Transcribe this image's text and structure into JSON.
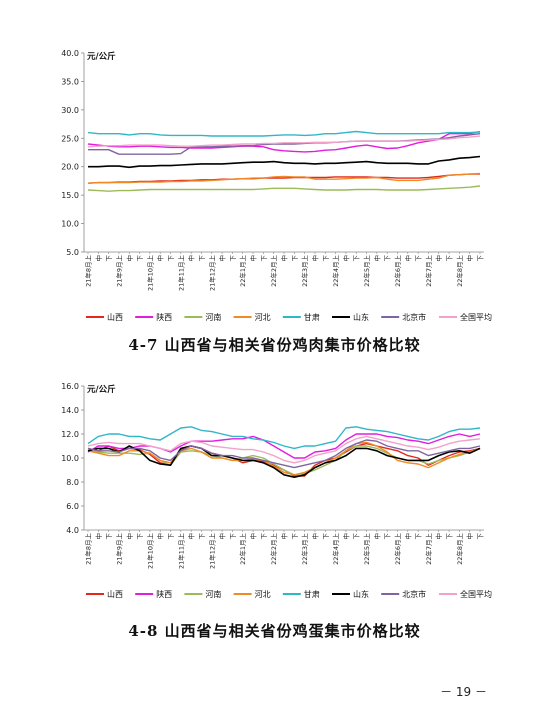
{
  "page": {
    "number": "－ 19 －"
  },
  "charts": [
    {
      "caption": "4-7 山西省与相关省份鸡肉集市价格比较",
      "chart_data": {
        "type": "line",
        "unit_label": "元/公斤",
        "ylim": [
          5.0,
          40.0
        ],
        "yticks": [
          "5.0",
          "10.0",
          "15.0",
          "20.0",
          "25.0",
          "30.0",
          "35.0",
          "40.0"
        ],
        "ytick_values": [
          5,
          10,
          15,
          20,
          25,
          30,
          35,
          40
        ],
        "grid": false,
        "legend_position": "bottom",
        "categories": [
          "21年8月上",
          "中",
          "下",
          "21年9月上",
          "中",
          "下",
          "21年10月上",
          "中",
          "下",
          "21年11月上",
          "中",
          "下",
          "21年12月上",
          "中",
          "下",
          "22年1月上",
          "中",
          "下",
          "22年2月上",
          "中",
          "下",
          "22年3月上",
          "中",
          "下",
          "22年4月上",
          "中",
          "下",
          "22年5月上",
          "中",
          "下",
          "22年6月上",
          "中",
          "下",
          "22年7月上",
          "中",
          "下",
          "22年8月上",
          "中",
          "下"
        ],
        "series": [
          {
            "name": "山西",
            "color": "#e0291e",
            "values": [
              17.1,
              17.2,
              17.2,
              17.3,
              17.3,
              17.4,
              17.4,
              17.5,
              17.5,
              17.6,
              17.6,
              17.7,
              17.7,
              17.8,
              17.8,
              17.9,
              17.9,
              18.0,
              18.0,
              18.0,
              18.1,
              18.1,
              18.1,
              18.1,
              18.2,
              18.2,
              18.2,
              18.2,
              18.1,
              18.1,
              18.0,
              18.0,
              18.0,
              18.1,
              18.3,
              18.5,
              18.6,
              18.7,
              18.7
            ]
          },
          {
            "name": "陕西",
            "color": "#e01ee0",
            "values": [
              24.0,
              23.8,
              23.6,
              23.5,
              23.5,
              23.6,
              23.6,
              23.5,
              23.4,
              23.4,
              23.3,
              23.3,
              23.3,
              23.4,
              23.5,
              23.6,
              23.6,
              23.5,
              23.0,
              22.8,
              22.7,
              22.6,
              22.7,
              22.9,
              23.0,
              23.3,
              23.6,
              23.8,
              23.5,
              23.2,
              23.3,
              23.7,
              24.2,
              24.5,
              24.8,
              25.8,
              25.8,
              25.8,
              26.2
            ]
          },
          {
            "name": "河南",
            "color": "#9bbb59",
            "values": [
              15.9,
              15.8,
              15.7,
              15.8,
              15.8,
              15.9,
              16.0,
              16.0,
              16.0,
              16.0,
              16.0,
              16.0,
              16.0,
              16.0,
              16.0,
              16.0,
              16.0,
              16.1,
              16.2,
              16.2,
              16.2,
              16.1,
              16.0,
              15.9,
              15.9,
              15.9,
              16.0,
              16.0,
              16.0,
              15.9,
              15.9,
              15.9,
              15.9,
              16.0,
              16.1,
              16.2,
              16.3,
              16.4,
              16.6
            ]
          },
          {
            "name": "河北",
            "color": "#f08a24",
            "values": [
              17.1,
              17.2,
              17.2,
              17.2,
              17.2,
              17.3,
              17.3,
              17.3,
              17.4,
              17.4,
              17.5,
              17.5,
              17.6,
              17.7,
              17.8,
              17.9,
              18.0,
              18.0,
              18.2,
              18.3,
              18.2,
              18.2,
              17.8,
              17.8,
              17.8,
              17.9,
              18.0,
              18.0,
              18.1,
              17.8,
              17.6,
              17.6,
              17.6,
              17.8,
              18.0,
              18.5,
              18.6,
              18.7,
              18.8
            ]
          },
          {
            "name": "甘肃",
            "color": "#31b6c8",
            "values": [
              26.0,
              25.8,
              25.8,
              25.8,
              25.6,
              25.8,
              25.8,
              25.6,
              25.5,
              25.5,
              25.5,
              25.5,
              25.4,
              25.4,
              25.4,
              25.4,
              25.4,
              25.4,
              25.5,
              25.6,
              25.6,
              25.5,
              25.6,
              25.8,
              25.8,
              26.0,
              26.2,
              26.0,
              25.8,
              25.8,
              25.8,
              25.8,
              25.8,
              25.8,
              25.8,
              26.0,
              26.0,
              26.0,
              26.1
            ]
          },
          {
            "name": "山东",
            "color": "#000000",
            "values": [
              20.0,
              20.0,
              20.1,
              20.1,
              19.9,
              20.1,
              20.1,
              20.2,
              20.2,
              20.3,
              20.4,
              20.5,
              20.5,
              20.5,
              20.6,
              20.7,
              20.8,
              20.8,
              20.9,
              20.7,
              20.6,
              20.6,
              20.5,
              20.6,
              20.6,
              20.7,
              20.8,
              20.9,
              20.7,
              20.6,
              20.6,
              20.6,
              20.5,
              20.5,
              21.0,
              21.2,
              21.5,
              21.6,
              21.8
            ]
          },
          {
            "name": "北京市",
            "color": "#8064a2",
            "values": [
              23.0,
              23.0,
              23.0,
              22.2,
              22.2,
              22.2,
              22.2,
              22.2,
              22.2,
              22.3,
              23.5,
              23.5,
              23.5,
              23.6,
              23.6,
              23.7,
              23.7,
              23.9,
              24.0,
              24.0,
              24.0,
              24.1,
              24.2,
              24.2,
              24.3,
              24.4,
              24.5,
              24.5,
              24.5,
              24.5,
              24.5,
              24.6,
              24.7,
              24.8,
              24.9,
              25.1,
              25.4,
              25.6,
              25.8
            ]
          },
          {
            "name": "全国平均",
            "color": "#f2a2c8",
            "values": [
              23.5,
              23.6,
              23.7,
              23.7,
              23.8,
              23.8,
              23.8,
              23.8,
              23.7,
              23.6,
              23.6,
              23.7,
              23.8,
              23.8,
              23.9,
              24.0,
              24.0,
              24.1,
              24.1,
              24.2,
              24.2,
              24.2,
              24.3,
              24.3,
              24.3,
              24.4,
              24.5,
              24.5,
              24.5,
              24.5,
              24.5,
              24.5,
              24.6,
              24.7,
              24.8,
              24.9,
              25.1,
              25.2,
              25.4
            ]
          }
        ]
      }
    },
    {
      "caption": "4-8 山西省与相关省份鸡蛋集市价格比较",
      "chart_data": {
        "type": "line",
        "unit_label": "元/公斤",
        "ylim": [
          4.0,
          16.0
        ],
        "yticks": [
          "4.0",
          "6.0",
          "8.0",
          "10.0",
          "12.0",
          "14.0",
          "16.0"
        ],
        "ytick_values": [
          4,
          6,
          8,
          10,
          12,
          14,
          16
        ],
        "grid": false,
        "legend_position": "bottom",
        "categories": [
          "21年8月上",
          "中",
          "下",
          "21年9月上",
          "中",
          "下",
          "21年10月上",
          "中",
          "下",
          "21年11月上",
          "中",
          "下",
          "21年12月上",
          "中",
          "下",
          "22年1月上",
          "中",
          "下",
          "22年2月上",
          "中",
          "下",
          "22年3月上",
          "中",
          "下",
          "22年4月上",
          "中",
          "下",
          "22年5月上",
          "中",
          "下",
          "22年6月上",
          "中",
          "下",
          "22年7月上",
          "中",
          "下",
          "22年8月上",
          "中",
          "下"
        ],
        "series": [
          {
            "name": "山西",
            "color": "#e0291e",
            "values": [
              10.8,
              10.6,
              11.0,
              10.6,
              10.8,
              10.7,
              10.3,
              9.6,
              9.4,
              10.7,
              11.0,
              10.8,
              10.4,
              10.2,
              10.0,
              9.6,
              9.8,
              9.7,
              9.4,
              9.0,
              8.5,
              8.5,
              9.4,
              9.8,
              10.0,
              10.5,
              11.0,
              11.2,
              11.0,
              10.8,
              10.6,
              10.2,
              10.0,
              9.4,
              9.8,
              10.2,
              10.5,
              10.6,
              10.8
            ]
          },
          {
            "name": "陕西",
            "color": "#e01ee0",
            "values": [
              10.5,
              11.0,
              11.0,
              10.8,
              10.8,
              11.0,
              11.0,
              10.8,
              10.5,
              11.0,
              11.4,
              11.4,
              11.4,
              11.5,
              11.6,
              11.6,
              11.8,
              11.5,
              11.0,
              10.5,
              10.0,
              10.0,
              10.5,
              10.6,
              10.8,
              11.5,
              12.0,
              12.0,
              12.0,
              11.8,
              11.7,
              11.5,
              11.4,
              11.2,
              11.5,
              11.8,
              12.0,
              11.8,
              12.0
            ]
          },
          {
            "name": "河南",
            "color": "#9bbb59",
            "values": [
              10.6,
              10.5,
              10.4,
              10.4,
              10.4,
              10.3,
              10.4,
              9.8,
              9.4,
              10.5,
              10.6,
              10.5,
              10.2,
              10.0,
              9.8,
              10.0,
              10.2,
              10.0,
              9.5,
              9.0,
              8.6,
              8.7,
              9.0,
              9.4,
              9.8,
              10.6,
              11.0,
              11.0,
              10.8,
              10.4,
              10.0,
              9.8,
              9.8,
              9.5,
              9.8,
              10.0,
              10.2,
              10.5,
              10.8
            ]
          },
          {
            "name": "河北",
            "color": "#f08a24",
            "values": [
              10.6,
              10.4,
              10.2,
              10.2,
              10.6,
              10.6,
              10.4,
              9.8,
              9.6,
              10.6,
              10.8,
              10.5,
              10.0,
              10.0,
              9.8,
              9.8,
              9.9,
              9.8,
              9.3,
              8.8,
              8.6,
              8.8,
              9.2,
              9.6,
              10.0,
              10.6,
              11.2,
              11.3,
              11.0,
              10.5,
              9.8,
              9.6,
              9.5,
              9.2,
              9.6,
              10.0,
              10.3,
              10.5,
              10.8
            ]
          },
          {
            "name": "甘肃",
            "color": "#31b6c8",
            "values": [
              11.2,
              11.8,
              12.0,
              12.0,
              11.8,
              11.8,
              11.6,
              11.5,
              12.0,
              12.5,
              12.6,
              12.3,
              12.2,
              12.0,
              11.8,
              11.8,
              11.6,
              11.5,
              11.3,
              11.0,
              10.8,
              11.0,
              11.0,
              11.2,
              11.4,
              12.5,
              12.6,
              12.4,
              12.3,
              12.2,
              12.0,
              11.8,
              11.6,
              11.5,
              11.8,
              12.2,
              12.4,
              12.4,
              12.5
            ]
          },
          {
            "name": "山东",
            "color": "#000000",
            "values": [
              10.6,
              10.8,
              10.8,
              10.5,
              11.0,
              10.6,
              9.8,
              9.5,
              9.4,
              10.8,
              11.0,
              10.8,
              10.2,
              10.2,
              10.0,
              9.8,
              9.8,
              9.6,
              9.2,
              8.6,
              8.4,
              8.6,
              9.2,
              9.6,
              9.8,
              10.2,
              10.8,
              10.8,
              10.6,
              10.2,
              10.0,
              9.8,
              9.8,
              9.8,
              10.2,
              10.5,
              10.6,
              10.4,
              10.8
            ]
          },
          {
            "name": "北京市",
            "color": "#8064a2",
            "values": [
              10.8,
              10.6,
              10.6,
              10.5,
              10.8,
              10.8,
              10.6,
              10.0,
              9.8,
              10.6,
              11.0,
              10.8,
              10.4,
              10.2,
              10.2,
              10.0,
              10.0,
              9.8,
              9.6,
              9.4,
              9.2,
              9.4,
              9.6,
              9.8,
              10.2,
              10.8,
              11.2,
              11.5,
              11.4,
              11.0,
              10.8,
              10.6,
              10.6,
              10.2,
              10.4,
              10.6,
              10.8,
              10.8,
              11.0
            ]
          },
          {
            "name": "全国平均",
            "color": "#f2a2c8",
            "values": [
              11.0,
              11.2,
              11.3,
              11.2,
              11.2,
              11.2,
              11.0,
              10.8,
              10.6,
              11.2,
              11.4,
              11.3,
              11.0,
              10.9,
              10.8,
              10.7,
              10.7,
              10.5,
              10.2,
              9.8,
              9.6,
              9.8,
              10.2,
              10.4,
              10.6,
              11.2,
              11.6,
              11.8,
              11.6,
              11.4,
              11.2,
              11.0,
              10.9,
              10.7,
              10.9,
              11.2,
              11.4,
              11.5,
              11.6
            ]
          }
        ]
      }
    }
  ]
}
